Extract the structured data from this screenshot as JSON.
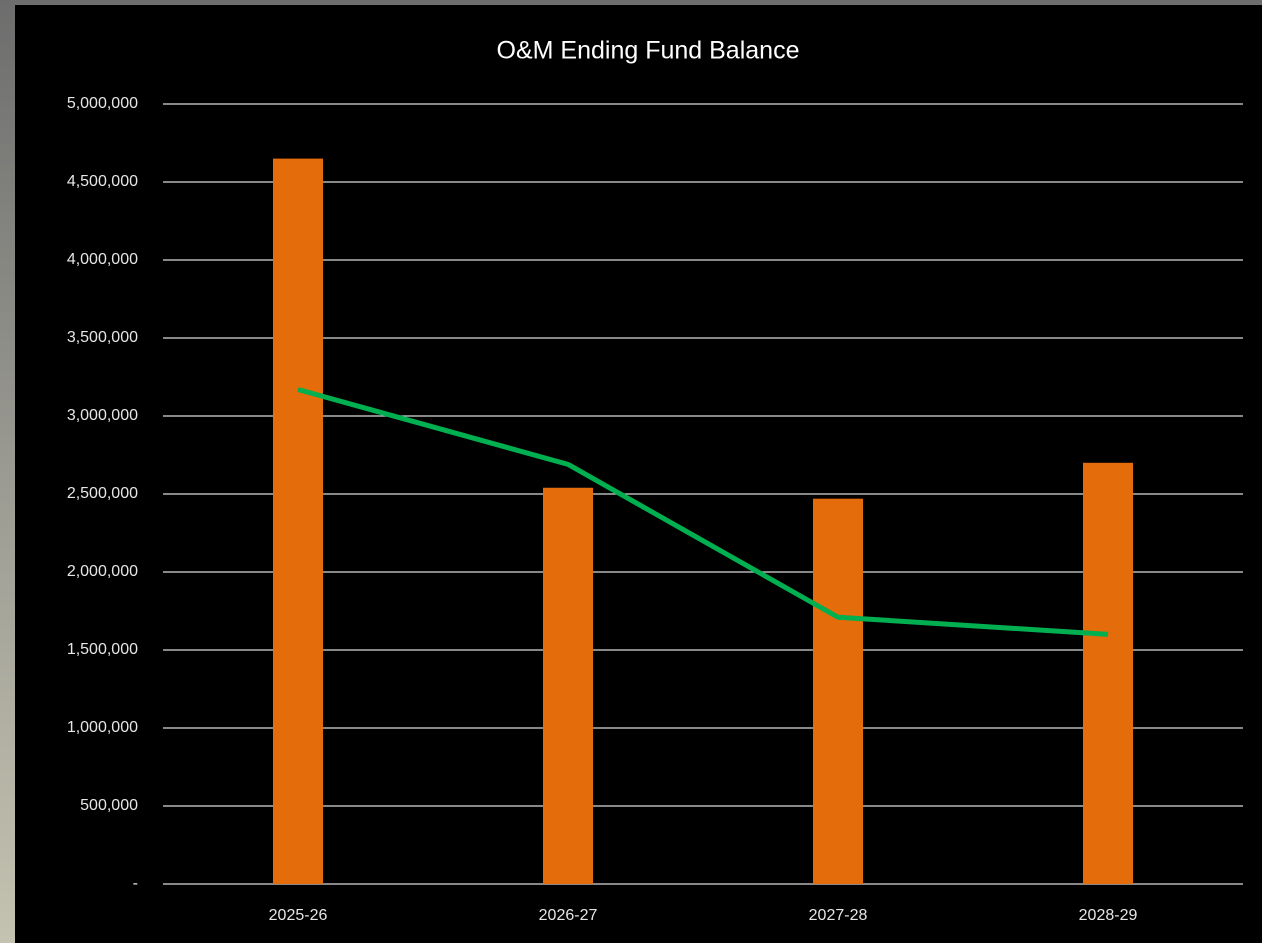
{
  "chart_data": {
    "type": "bar",
    "title": "O&M Ending Fund Balance",
    "categories": [
      "2025-26",
      "2026-27",
      "2027-28",
      "2028-29"
    ],
    "series": [
      {
        "type": "bar",
        "color": "#e46c0a",
        "values": [
          4650000,
          2540000,
          2470000,
          2700000
        ]
      },
      {
        "type": "line",
        "color": "#00b050",
        "values": [
          3170000,
          2690000,
          1710000,
          1600000
        ]
      }
    ],
    "ylim": [
      0,
      5000000
    ],
    "yticks": [
      {
        "value": 0,
        "label": "-"
      },
      {
        "value": 500000,
        "label": "500,000"
      },
      {
        "value": 1000000,
        "label": "1,000,000"
      },
      {
        "value": 1500000,
        "label": "1,500,000"
      },
      {
        "value": 2000000,
        "label": "2,000,000"
      },
      {
        "value": 2500000,
        "label": "2,500,000"
      },
      {
        "value": 3000000,
        "label": "3,000,000"
      },
      {
        "value": 3500000,
        "label": "3,500,000"
      },
      {
        "value": 4000000,
        "label": "4,000,000"
      },
      {
        "value": 4500000,
        "label": "4,500,000"
      },
      {
        "value": 5000000,
        "label": "5,000,000"
      }
    ],
    "grid": true
  }
}
